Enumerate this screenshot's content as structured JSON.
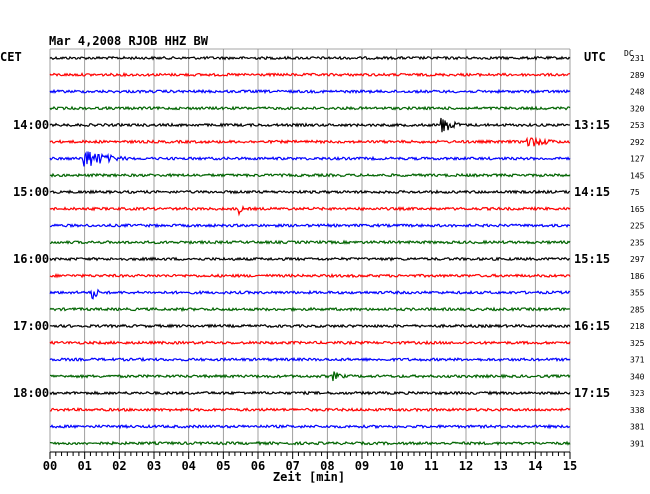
{
  "header": {
    "title": "Mar 4,2008   RJOB HHZ BW",
    "left_tz": "CET",
    "right_tz": "UTC",
    "dc_label": "DC"
  },
  "chart_data": {
    "type": "line",
    "title": "Mar 4,2008   RJOB HHZ BW",
    "xlabel": "Zeit [min]",
    "x_ticks": [
      "00",
      "01",
      "02",
      "03",
      "04",
      "05",
      "06",
      "07",
      "08",
      "09",
      "10",
      "11",
      "12",
      "13",
      "14",
      "15"
    ],
    "xlim": [
      0,
      15
    ],
    "grid": true,
    "trace_colors": [
      "#000000",
      "#ff0000",
      "#0000ff",
      "#006400"
    ],
    "left_time_labels": [
      "14:00",
      "15:00",
      "16:00",
      "17:00",
      "18:00"
    ],
    "right_time_labels": [
      "13:15",
      "14:15",
      "15:15",
      "16:15",
      "17:15"
    ],
    "time_label_trace_index": [
      4,
      8,
      12,
      16,
      20
    ],
    "dc_values": [
      "231",
      "289",
      "248",
      "320",
      "253",
      "292",
      "127",
      "145",
      "75",
      "165",
      "225",
      "235",
      "297",
      "186",
      "355",
      "285",
      "218",
      "325",
      "371",
      "340",
      "323",
      "338",
      "381",
      "391"
    ],
    "events": [
      {
        "trace": 4,
        "minute": 11.3,
        "amplitude": 9,
        "duration": 0.8
      },
      {
        "trace": 5,
        "minute": 13.8,
        "amplitude": 6,
        "duration": 1.4
      },
      {
        "trace": 6,
        "minute": 1.0,
        "amplitude": 11,
        "duration": 1.4
      },
      {
        "trace": 9,
        "minute": 5.5,
        "amplitude": 4,
        "duration": 0.2
      },
      {
        "trace": 14,
        "minute": 1.25,
        "amplitude": 8,
        "duration": 0.3
      },
      {
        "trace": 19,
        "minute": 8.2,
        "amplitude": 5,
        "duration": 0.6
      }
    ]
  }
}
